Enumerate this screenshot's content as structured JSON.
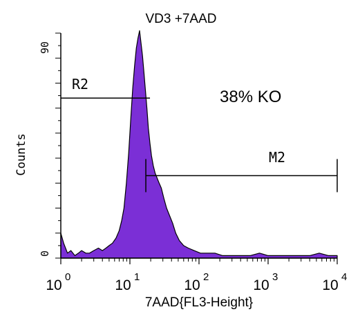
{
  "chart_data": {
    "type": "histogram",
    "title": "VD3 +7AAD",
    "xlabel": "7AAD{FL3-Height}",
    "ylabel": "Counts",
    "x_scale": "log",
    "xlim": [
      1,
      10000
    ],
    "ylim": [
      0,
      90
    ],
    "x_tick_labels": [
      {
        "base": "10",
        "exp": "0"
      },
      {
        "base": "10",
        "exp": "1"
      },
      {
        "base": "10",
        "exp": "2"
      },
      {
        "base": "10",
        "exp": "3"
      },
      {
        "base": "10",
        "exp": "4"
      }
    ],
    "y_tick_labels": [
      "0",
      "90"
    ],
    "fill_color": "#7b2fd6",
    "annotations": {
      "region_label": "R2",
      "region_y": 64,
      "marker_label": "M2",
      "marker_x_start": 17,
      "marker_x_end": 10000,
      "marker_y": 33,
      "result_text": "38% KO"
    },
    "series": [
      {
        "x": [
          1.0,
          1.1,
          1.25,
          1.4,
          1.6,
          1.8,
          2.0,
          2.3,
          2.6,
          3.0,
          3.5,
          4.0,
          4.5,
          5.0,
          5.6,
          6.3,
          7.0,
          7.6,
          8.2,
          8.9,
          9.6,
          10.3,
          11.0,
          11.7,
          12.4,
          13.1,
          13.8,
          14.5,
          15.2,
          16.0,
          16.8,
          17.6,
          18.5,
          19.5,
          20.5,
          21.8,
          23.2,
          24.8,
          26.5,
          28.5,
          31.0,
          34.0,
          37.5,
          41.5,
          46.0,
          52.0,
          60.0,
          70.0,
          85.0,
          105.0,
          130.0,
          170.0,
          220.0,
          300.0,
          400.0,
          550.0,
          750.0,
          1000.0,
          1400.0,
          2000.0,
          2800.0,
          4000.0,
          5500.0,
          7500.0,
          10000.0
        ],
        "y": [
          10,
          6,
          2,
          3,
          1,
          2,
          3,
          2,
          2,
          3,
          4,
          3,
          4,
          5,
          6,
          8,
          11,
          15,
          20,
          30,
          42,
          56,
          68,
          77,
          84,
          88,
          91,
          86,
          81,
          74,
          67,
          60,
          52,
          46,
          41,
          37,
          34,
          32,
          30,
          28,
          24,
          20,
          17,
          14,
          10,
          7,
          5,
          4,
          3,
          2,
          2,
          2,
          1,
          1,
          1,
          1,
          2,
          1,
          1,
          1,
          1,
          1,
          2,
          1,
          1
        ]
      }
    ]
  }
}
